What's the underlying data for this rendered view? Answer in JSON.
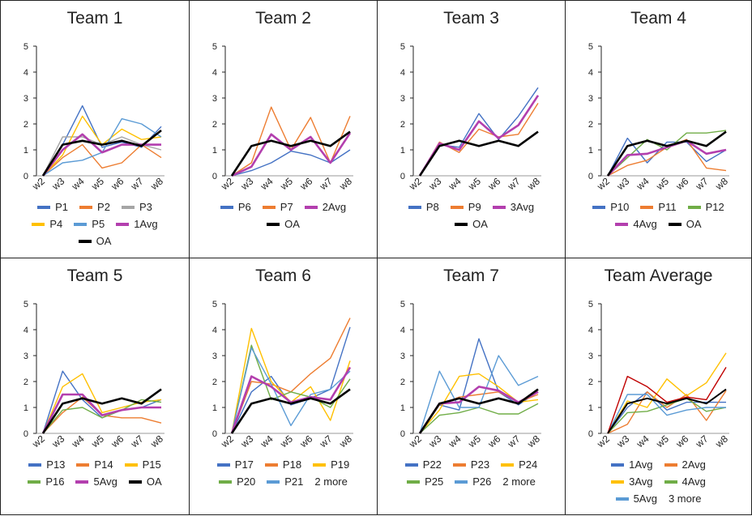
{
  "chart_data": [
    {
      "type": "line",
      "title": "Team 1",
      "categories": [
        "w2",
        "w3",
        "w4",
        "w5",
        "w6",
        "w7",
        "w8"
      ],
      "ylim": [
        0,
        5
      ],
      "yticks": [
        "0",
        "1",
        "2",
        "3",
        "4",
        "5"
      ],
      "series": [
        {
          "name": "P1",
          "color": "#4472C4",
          "values": [
            0,
            1.2,
            2.7,
            1.1,
            1.3,
            1.1,
            1.9
          ],
          "width": 1.4
        },
        {
          "name": "P2",
          "color": "#ED7D31",
          "values": [
            0,
            0.7,
            1.2,
            0.3,
            0.5,
            1.2,
            0.7
          ],
          "width": 1.4
        },
        {
          "name": "P3",
          "color": "#A5A5A5",
          "values": [
            0,
            1.5,
            1.5,
            1.2,
            1.5,
            1.2,
            1.0
          ],
          "width": 1.4
        },
        {
          "name": "P4",
          "color": "#FFC000",
          "values": [
            0,
            0.8,
            2.3,
            1.2,
            1.8,
            1.4,
            1.5
          ],
          "width": 1.4
        },
        {
          "name": "P5",
          "color": "#5B9BD5",
          "values": [
            0,
            0.5,
            0.6,
            0.9,
            2.2,
            2.0,
            1.5
          ],
          "width": 1.4
        },
        {
          "name": "1Avg",
          "color": "#B33FAE",
          "values": [
            0,
            1.0,
            1.6,
            0.9,
            1.2,
            1.2,
            1.2
          ],
          "width": 2.6
        },
        {
          "name": "OA",
          "color": "#000000",
          "values": [
            0,
            1.2,
            1.35,
            1.2,
            1.35,
            1.15,
            1.75
          ],
          "width": 2.6
        }
      ],
      "legend_rows": [
        [
          0,
          1,
          2
        ],
        [
          3,
          4,
          5
        ],
        [
          6
        ]
      ],
      "more": ""
    },
    {
      "type": "line",
      "title": "Team 2",
      "categories": [
        "w2",
        "w3",
        "w4",
        "w5",
        "w6",
        "w7",
        "w8"
      ],
      "ylim": [
        0,
        5
      ],
      "yticks": [
        "0",
        "1",
        "2",
        "3",
        "4",
        "5"
      ],
      "series": [
        {
          "name": "P6",
          "color": "#4472C4",
          "values": [
            0,
            0.2,
            0.5,
            0.95,
            0.8,
            0.5,
            1.0
          ],
          "width": 1.4
        },
        {
          "name": "P7",
          "color": "#ED7D31",
          "values": [
            0,
            0.5,
            2.65,
            1.0,
            2.25,
            0.5,
            2.3
          ],
          "width": 1.4
        },
        {
          "name": "2Avg",
          "color": "#B33FAE",
          "values": [
            0,
            0.35,
            1.6,
            1.0,
            1.5,
            0.5,
            1.65
          ],
          "width": 2.6
        },
        {
          "name": "OA",
          "color": "#000000",
          "values": [
            0,
            1.15,
            1.35,
            1.15,
            1.35,
            1.15,
            1.7
          ],
          "width": 2.6
        }
      ],
      "legend_rows": [
        [
          0,
          1,
          2
        ],
        [
          3
        ]
      ],
      "more": ""
    },
    {
      "type": "line",
      "title": "Team 3",
      "categories": [
        "w2",
        "w3",
        "w4",
        "w5",
        "w6",
        "w7",
        "w8"
      ],
      "ylim": [
        0,
        5
      ],
      "yticks": [
        "0",
        "1",
        "2",
        "3",
        "4",
        "5"
      ],
      "series": [
        {
          "name": "P8",
          "color": "#4472C4",
          "values": [
            0,
            1.2,
            1.1,
            2.4,
            1.4,
            2.3,
            3.4
          ],
          "width": 1.4
        },
        {
          "name": "P9",
          "color": "#ED7D31",
          "values": [
            0,
            1.3,
            0.9,
            1.8,
            1.5,
            1.6,
            2.8
          ],
          "width": 1.4
        },
        {
          "name": "3Avg",
          "color": "#B33FAE",
          "values": [
            0,
            1.25,
            1.0,
            2.1,
            1.45,
            1.95,
            3.1
          ],
          "width": 2.6
        },
        {
          "name": "OA",
          "color": "#000000",
          "values": [
            0,
            1.15,
            1.35,
            1.15,
            1.35,
            1.15,
            1.7
          ],
          "width": 2.6
        }
      ],
      "legend_rows": [
        [
          0,
          1,
          2
        ],
        [
          3
        ]
      ],
      "more": ""
    },
    {
      "type": "line",
      "title": "Team 4",
      "categories": [
        "w2",
        "w3",
        "w4",
        "w5",
        "w6",
        "w7",
        "w8"
      ],
      "ylim": [
        0,
        5
      ],
      "yticks": [
        "0",
        "1",
        "2",
        "3",
        "4",
        "5"
      ],
      "series": [
        {
          "name": "P10",
          "color": "#4472C4",
          "values": [
            0,
            1.45,
            0.5,
            1.3,
            1.3,
            0.55,
            1.0
          ],
          "width": 1.4
        },
        {
          "name": "P11",
          "color": "#ED7D31",
          "values": [
            0,
            0.4,
            0.6,
            1.1,
            1.4,
            0.3,
            0.2
          ],
          "width": 1.4
        },
        {
          "name": "P12",
          "color": "#70AD47",
          "values": [
            0,
            0.7,
            1.4,
            1.0,
            1.65,
            1.65,
            1.75
          ],
          "width": 1.4
        },
        {
          "name": "4Avg",
          "color": "#B33FAE",
          "values": [
            0,
            0.8,
            0.85,
            1.1,
            1.35,
            0.85,
            1.0
          ],
          "width": 2.6
        },
        {
          "name": "OA",
          "color": "#000000",
          "values": [
            0,
            1.15,
            1.35,
            1.15,
            1.35,
            1.15,
            1.7
          ],
          "width": 2.6
        }
      ],
      "legend_rows": [
        [
          0,
          1,
          2
        ],
        [
          3,
          4
        ]
      ],
      "more": ""
    },
    {
      "type": "line",
      "title": "Team 5",
      "categories": [
        "w2",
        "w3",
        "w4",
        "w5",
        "w6",
        "w7",
        "w8"
      ],
      "ylim": [
        0,
        5
      ],
      "yticks": [
        "0",
        "1",
        "2",
        "3",
        "4",
        "5"
      ],
      "series": [
        {
          "name": "P13",
          "color": "#4472C4",
          "values": [
            0,
            2.4,
            1.3,
            0.6,
            0.9,
            1.0,
            1.3
          ],
          "width": 1.4
        },
        {
          "name": "P14",
          "color": "#ED7D31",
          "values": [
            0,
            0.8,
            1.4,
            0.7,
            0.6,
            0.6,
            0.4
          ],
          "width": 1.4
        },
        {
          "name": "P15",
          "color": "#FFC000",
          "values": [
            0,
            1.8,
            2.3,
            0.8,
            1.0,
            1.2,
            1.3
          ],
          "width": 1.4
        },
        {
          "name": "P16",
          "color": "#70AD47",
          "values": [
            0,
            0.9,
            1.0,
            0.6,
            0.9,
            1.3,
            1.2
          ],
          "width": 1.4
        },
        {
          "name": "5Avg",
          "color": "#B33FAE",
          "values": [
            0,
            1.5,
            1.5,
            0.7,
            0.9,
            1.0,
            1.0
          ],
          "width": 2.6
        },
        {
          "name": "OA",
          "color": "#000000",
          "values": [
            0,
            1.15,
            1.35,
            1.15,
            1.35,
            1.15,
            1.7
          ],
          "width": 2.6
        }
      ],
      "legend_rows": [
        [
          0,
          1,
          2
        ],
        [
          3,
          4,
          5
        ]
      ],
      "more": ""
    },
    {
      "type": "line",
      "title": "Team 6",
      "categories": [
        "w2",
        "w3",
        "w4",
        "w5",
        "w6",
        "w7",
        "w8"
      ],
      "ylim": [
        0,
        5
      ],
      "yticks": [
        "0",
        "1",
        "2",
        "3",
        "4",
        "5"
      ],
      "series": [
        {
          "name": "P17",
          "color": "#4472C4",
          "values": [
            0,
            1.6,
            2.2,
            1.1,
            1.35,
            1.7,
            4.1
          ],
          "width": 1.4
        },
        {
          "name": "P18",
          "color": "#ED7D31",
          "values": [
            0,
            2.0,
            1.9,
            1.6,
            2.3,
            2.9,
            4.45
          ],
          "width": 1.4
        },
        {
          "name": "P19",
          "color": "#FFC000",
          "values": [
            0,
            4.05,
            2.0,
            1.2,
            1.8,
            0.5,
            2.8
          ],
          "width": 1.4
        },
        {
          "name": "P20",
          "color": "#70AD47",
          "values": [
            0,
            3.4,
            1.3,
            1.6,
            1.4,
            1.0,
            2.1
          ],
          "width": 1.4
        },
        {
          "name": "P21",
          "color": "#5B9BD5",
          "values": [
            0,
            3.3,
            1.9,
            0.3,
            1.5,
            1.7,
            2.4
          ],
          "width": 1.4
        },
        {
          "name": "",
          "color": "#B33FAE",
          "values": [
            0,
            2.2,
            1.8,
            1.2,
            1.4,
            1.3,
            2.55
          ],
          "width": 2.6
        },
        {
          "name": "",
          "color": "#000000",
          "values": [
            0,
            1.15,
            1.35,
            1.15,
            1.35,
            1.15,
            1.7
          ],
          "width": 2.6
        }
      ],
      "legend_rows": [
        [
          0,
          1,
          2
        ],
        [
          3,
          4
        ]
      ],
      "more": "2 more"
    },
    {
      "type": "line",
      "title": "Team 7",
      "categories": [
        "w2",
        "w3",
        "w4",
        "w5",
        "w6",
        "w7",
        "w8"
      ],
      "ylim": [
        0,
        5
      ],
      "yticks": [
        "0",
        "1",
        "2",
        "3",
        "4",
        "5"
      ],
      "series": [
        {
          "name": "P22",
          "color": "#4472C4",
          "values": [
            0,
            1.1,
            0.9,
            3.65,
            1.6,
            1.1,
            1.6
          ],
          "width": 1.4
        },
        {
          "name": "P23",
          "color": "#ED7D31",
          "values": [
            0,
            1.1,
            1.4,
            1.5,
            1.6,
            1.2,
            1.5
          ],
          "width": 1.4
        },
        {
          "name": "P24",
          "color": "#FFC000",
          "values": [
            0,
            0.9,
            2.2,
            2.3,
            1.8,
            1.2,
            1.3
          ],
          "width": 1.4
        },
        {
          "name": "P25",
          "color": "#70AD47",
          "values": [
            0,
            0.7,
            0.8,
            1.0,
            0.75,
            0.75,
            1.15
          ],
          "width": 1.4
        },
        {
          "name": "P26",
          "color": "#5B9BD5",
          "values": [
            0,
            2.4,
            1.0,
            1.0,
            3.0,
            1.85,
            2.2
          ],
          "width": 1.4
        },
        {
          "name": "",
          "color": "#B33FAE",
          "values": [
            0,
            1.15,
            1.2,
            1.8,
            1.65,
            1.2,
            1.6
          ],
          "width": 2.6
        },
        {
          "name": "",
          "color": "#000000",
          "values": [
            0,
            1.15,
            1.35,
            1.15,
            1.35,
            1.15,
            1.7
          ],
          "width": 2.6
        }
      ],
      "legend_rows": [
        [
          0,
          1,
          2
        ],
        [
          3,
          4
        ]
      ],
      "more": "2 more"
    },
    {
      "type": "line",
      "title": "Team Average",
      "categories": [
        "w2",
        "w3",
        "w4",
        "w5",
        "w6",
        "w7",
        "w8"
      ],
      "ylim": [
        0,
        5
      ],
      "yticks": [
        "0",
        "1",
        "2",
        "3",
        "4",
        "5"
      ],
      "series": [
        {
          "name": "1Avg",
          "color": "#4472C4",
          "values": [
            0,
            1.0,
            1.6,
            0.9,
            1.2,
            1.2,
            1.2
          ],
          "width": 1.4
        },
        {
          "name": "2Avg",
          "color": "#ED7D31",
          "values": [
            0,
            0.35,
            1.6,
            1.0,
            1.5,
            0.5,
            1.65
          ],
          "width": 1.4
        },
        {
          "name": "3Avg",
          "color": "#FFC000",
          "values": [
            0,
            1.25,
            1.0,
            2.1,
            1.45,
            1.95,
            3.1
          ],
          "width": 1.4
        },
        {
          "name": "4Avg",
          "color": "#70AD47",
          "values": [
            0,
            0.8,
            0.85,
            1.1,
            1.35,
            0.85,
            1.0
          ],
          "width": 1.4
        },
        {
          "name": "5Avg",
          "color": "#5B9BD5",
          "values": [
            0,
            1.5,
            1.5,
            0.7,
            0.9,
            1.0,
            1.0
          ],
          "width": 1.4
        },
        {
          "name": "",
          "color": "#C00000",
          "values": [
            0,
            2.2,
            1.8,
            1.2,
            1.4,
            1.3,
            2.55
          ],
          "width": 1.4
        },
        {
          "name": "",
          "color": "#000000",
          "values": [
            0,
            1.15,
            1.35,
            1.15,
            1.35,
            1.15,
            1.7
          ],
          "width": 2.0
        }
      ],
      "legend_rows": [
        [
          0,
          1
        ],
        [
          2,
          3
        ],
        [
          4
        ]
      ],
      "more": "3 more"
    }
  ]
}
